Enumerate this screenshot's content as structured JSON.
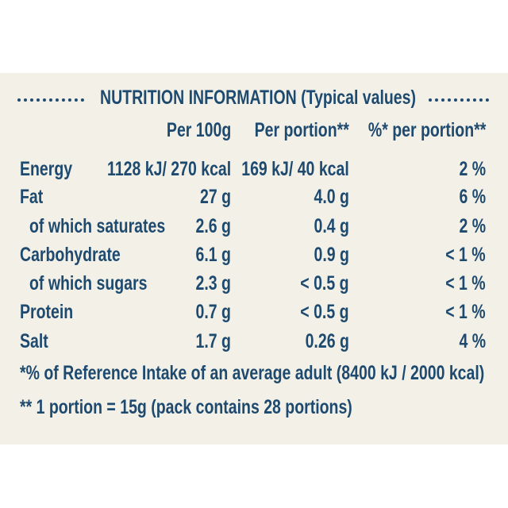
{
  "title": "NUTRITION INFORMATION (Typical values)",
  "table": {
    "header": [
      "Per 100g",
      "Per portion**",
      "%* per portion**"
    ],
    "rows": [
      [
        "Energy",
        "1128 kJ/ 270 kcal",
        "169 kJ/ 40 kcal",
        "2 %"
      ],
      [
        "Fat",
        "27 g",
        "4.0 g",
        "6 %"
      ],
      [
        "of which saturates",
        "2.6 g",
        "0.4 g",
        "2 %"
      ],
      [
        "Carbohydrate",
        "6.1 g",
        "0.9 g",
        "< 1 %"
      ],
      [
        "of which sugars",
        "2.3 g",
        "< 0.5 g",
        "< 1 %"
      ],
      [
        "Protein",
        "0.7 g",
        "< 0.5 g",
        "< 1 %"
      ],
      [
        "Salt",
        "1.7 g",
        "0.26 g",
        "4 %"
      ]
    ]
  },
  "footnotes": [
    "*% of Reference Intake of an average adult (8400 kJ / 2000 kcal)",
    "** 1 portion = 15g (pack contains 28 portions)"
  ]
}
